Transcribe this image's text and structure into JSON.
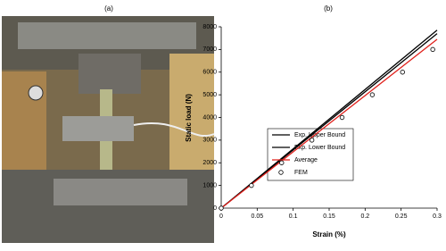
{
  "photo_label": "(a)",
  "chart_data": {
    "type": "line",
    "title": "(b)",
    "x_label": "Strain (%)",
    "y_label": "Static load (N)",
    "xlim": [
      0,
      0.3
    ],
    "ylim": [
      0,
      8000
    ],
    "xticks": [
      0,
      0.05,
      0.1,
      0.15,
      0.2,
      0.25,
      0.3
    ],
    "yticks": [
      0,
      1000,
      2000,
      3000,
      4000,
      5000,
      6000,
      7000,
      8000
    ],
    "series": [
      {
        "name": "Exp. Upper Bound",
        "color": "#000000",
        "x": [
          0,
          0.3
        ],
        "values": [
          0,
          7850
        ]
      },
      {
        "name": "Exp. Lower Bound",
        "color": "#000000",
        "x": [
          0,
          0.3
        ],
        "values": [
          0,
          7700
        ]
      },
      {
        "name": "Average",
        "color": "#e0201b",
        "x": [
          0,
          0.3
        ],
        "values": [
          0,
          7450
        ]
      },
      {
        "name": "FEM",
        "type": "scatter",
        "color": "#000000",
        "x": [
          0,
          0.042,
          0.084,
          0.126,
          0.168,
          0.21,
          0.252,
          0.294
        ],
        "values": [
          0,
          1000,
          2000,
          3000,
          4000,
          5000,
          6000,
          7000
        ]
      }
    ]
  }
}
